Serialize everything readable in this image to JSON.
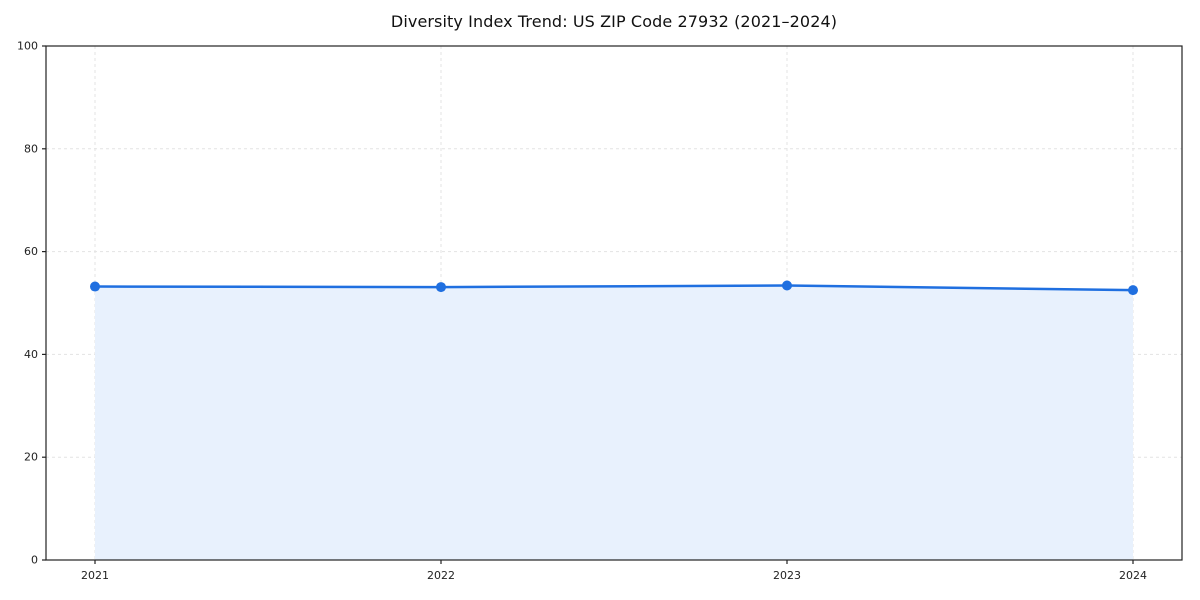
{
  "chart": {
    "title": "Diversity Index Trend: US ZIP Code 27932 (2021–2024)"
  },
  "chart_data": {
    "type": "area",
    "title": "Diversity Index Trend: US ZIP Code 27932 (2021–2024)",
    "categories": [
      "2021",
      "2022",
      "2023",
      "2024"
    ],
    "x": [
      2021,
      2022,
      2023,
      2024
    ],
    "series": [
      {
        "name": "Diversity Index",
        "values": [
          53.2,
          53.1,
          53.4,
          52.5
        ]
      }
    ],
    "xlabel": "",
    "ylabel": "",
    "ylim": [
      0,
      100
    ],
    "yticks": [
      0,
      20,
      40,
      60,
      80,
      100
    ],
    "grid": "dashed",
    "legend_position": "none",
    "line_color": "#1f6fe0",
    "fill_color": "#e8f1fd",
    "marker": "circle",
    "grid_color": "#e3e3e3",
    "axis_color": "#222222",
    "tick_label_color": "#222222"
  }
}
